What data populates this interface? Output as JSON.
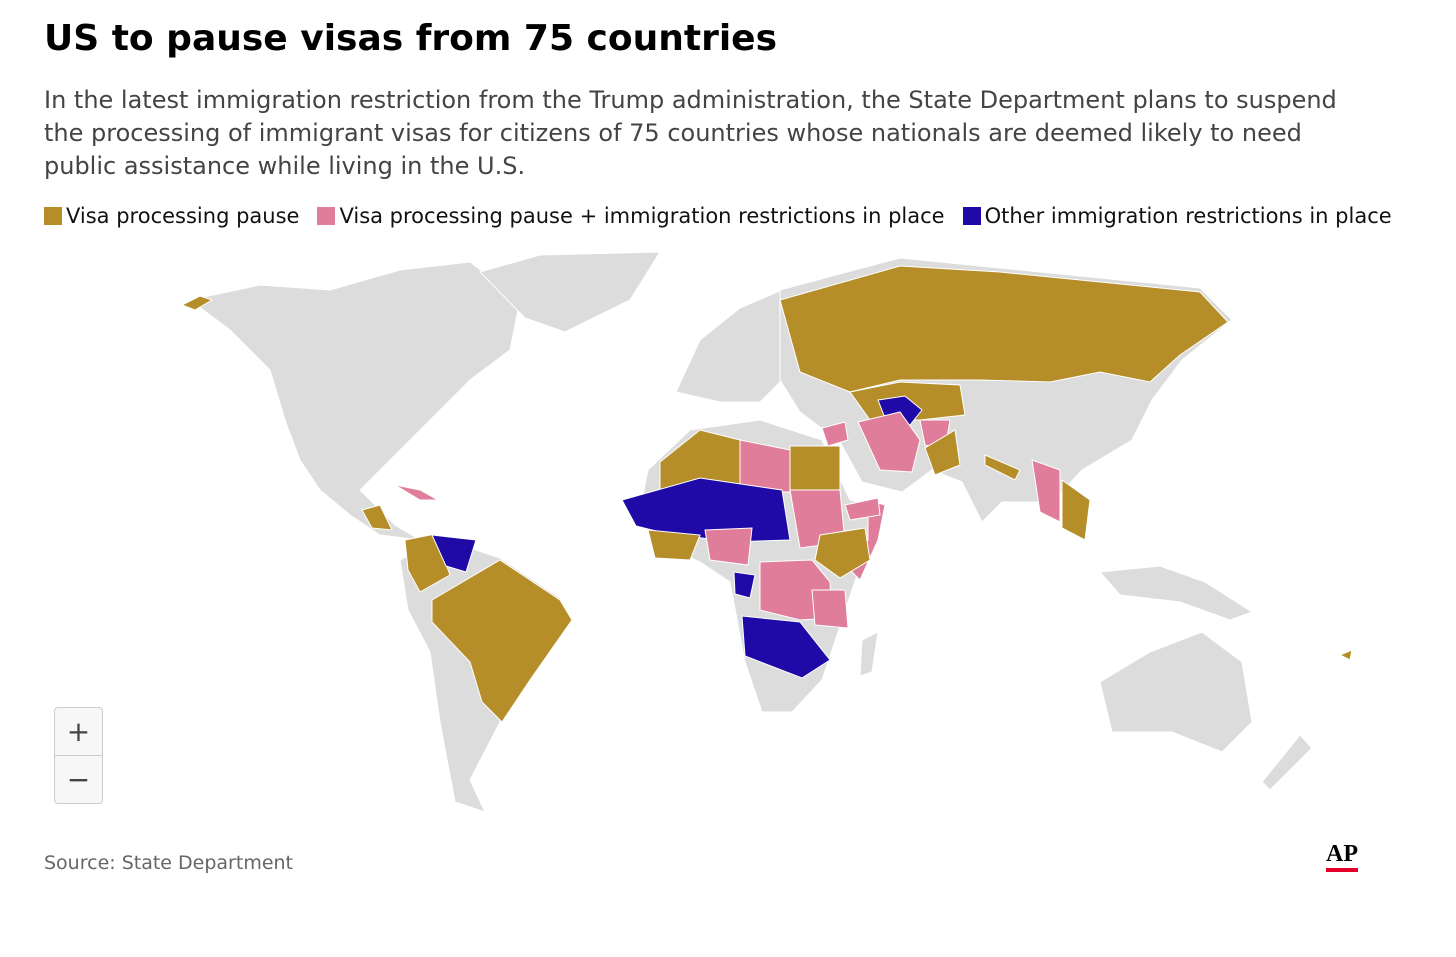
{
  "header": {
    "title": "US to pause visas from 75 countries",
    "subtitle": "In the latest immigration restriction from the Trump administration, the State Department plans to suspend the processing of immigrant visas for citizens of 75 countries whose nationals are deemed likely to need public assistance while living in the U.S."
  },
  "legend": [
    {
      "name": "Visa processing pause",
      "color": "#b58e2a"
    },
    {
      "name": "Visa processing pause + immigration restrictions in place",
      "color": "#e07d9a"
    },
    {
      "name": "Other immigration restrictions in place",
      "color": "#1f0aa8"
    }
  ],
  "map": {
    "zoom_in": "+",
    "zoom_out": "−"
  },
  "footer": {
    "source": "Source: State Department",
    "logo": "AP"
  }
}
